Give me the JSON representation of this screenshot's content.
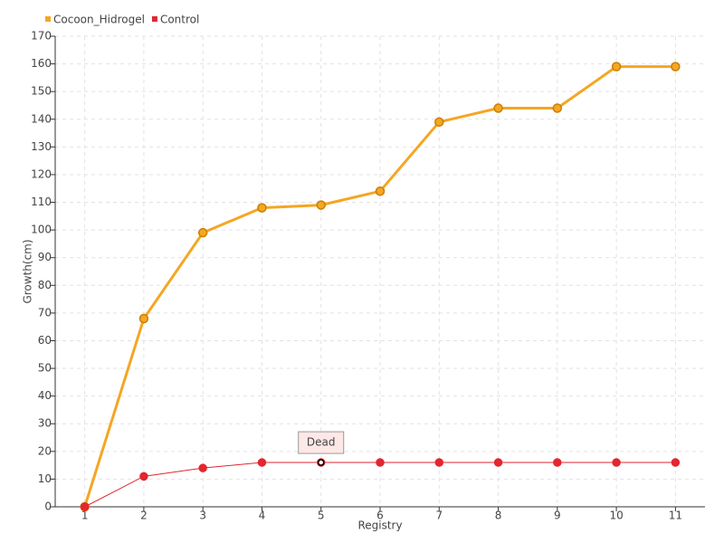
{
  "chart_data": {
    "type": "line",
    "x": [
      1,
      2,
      3,
      4,
      5,
      6,
      7,
      8,
      9,
      10,
      11
    ],
    "series": [
      {
        "name": "Cocoon_Hidrogel",
        "color": "#f5a623",
        "values": [
          0,
          68,
          99,
          108,
          109,
          114,
          139,
          144,
          144,
          159,
          159
        ]
      },
      {
        "name": "Control",
        "color": "#e3262f",
        "values": [
          0,
          11,
          14,
          16,
          16,
          16,
          16,
          16,
          16,
          16,
          16
        ]
      }
    ],
    "xlabel": "Registry",
    "ylabel": "Growth(cm)",
    "xlim": [
      0.5,
      11.5
    ],
    "xticks": [
      1,
      2,
      3,
      4,
      5,
      6,
      7,
      8,
      9,
      10,
      11
    ],
    "ylim": [
      0,
      170
    ],
    "yticks": [
      0,
      10,
      20,
      30,
      40,
      50,
      60,
      70,
      80,
      90,
      100,
      110,
      120,
      130,
      140,
      150,
      160,
      170
    ],
    "grid": true,
    "legend": "top-left",
    "annotations": [
      {
        "text": "Dead",
        "x": 5,
        "y": 16
      }
    ]
  }
}
